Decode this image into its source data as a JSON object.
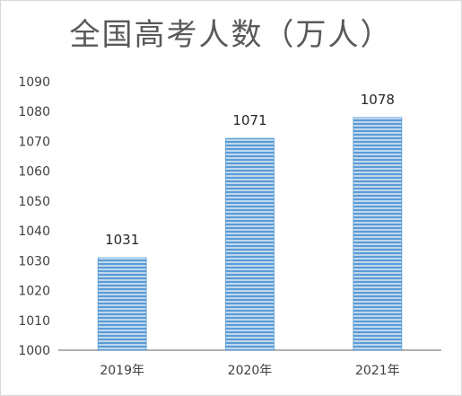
{
  "chart_data": {
    "type": "bar",
    "title": "全国高考人数（万人）",
    "categories": [
      "2019年",
      "2020年",
      "2021年"
    ],
    "values": [
      1031,
      1071,
      1078
    ],
    "data_labels": [
      "1031",
      "1071",
      "1078"
    ],
    "ylim": [
      1000,
      1090
    ],
    "yticks": [
      1000,
      1010,
      1020,
      1030,
      1040,
      1050,
      1060,
      1070,
      1080,
      1090
    ],
    "ytick_labels": [
      "1000",
      "1010",
      "1020",
      "1030",
      "1040",
      "1050",
      "1060",
      "1070",
      "1080",
      "1090"
    ],
    "xlabel": "",
    "ylabel": "",
    "grid": false,
    "legend": "none",
    "colors": {
      "bar": "#5b9bd5",
      "bar_stripe": "#ffffff",
      "axis": "#808080"
    }
  }
}
